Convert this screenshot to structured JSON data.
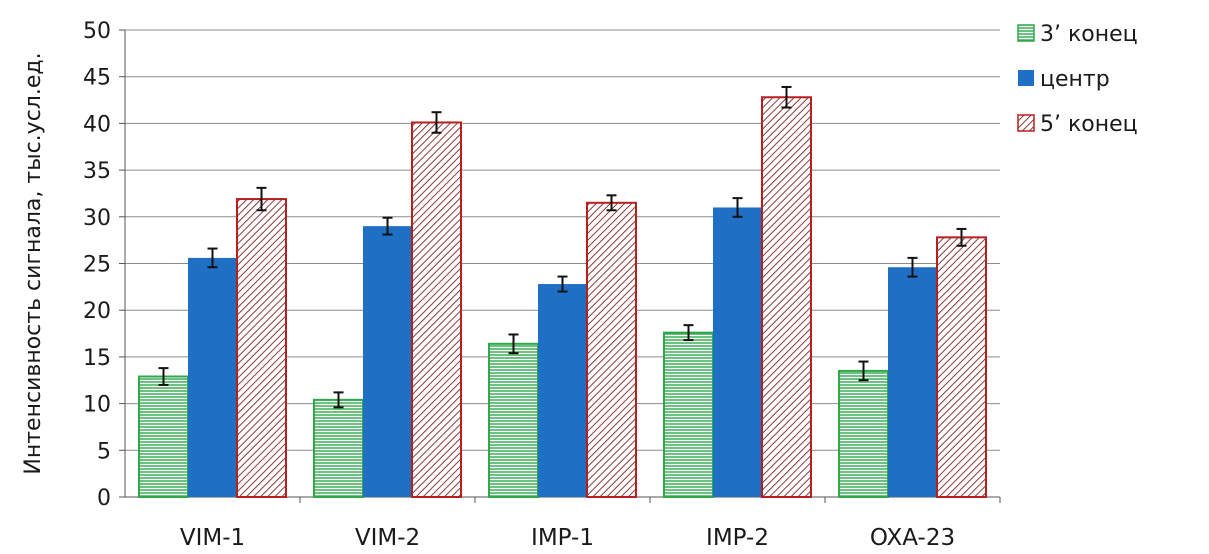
{
  "chart_data": {
    "type": "bar",
    "ylabel": "Интенсивность сигнала, тыс.усл.ед.",
    "ylim": [
      0,
      50
    ],
    "yticks": [
      0,
      5,
      10,
      15,
      20,
      25,
      30,
      35,
      40,
      45,
      50
    ],
    "grid": true,
    "legend_position": "top-right",
    "categories": [
      "VIM-1",
      "VIM-2",
      "IMP-1",
      "IMP-2",
      "OXA-23"
    ],
    "series": [
      {
        "name": "3’ конец",
        "values": [
          12.9,
          10.4,
          16.4,
          17.6,
          13.5
        ],
        "errors": [
          0.9,
          0.8,
          1.0,
          0.8,
          1.0
        ],
        "pattern": "horizontal-lines",
        "color": "#2ea84a"
      },
      {
        "name": "центр",
        "values": [
          25.6,
          29.0,
          22.8,
          31.0,
          24.6
        ],
        "errors": [
          1.0,
          0.9,
          0.8,
          1.0,
          1.0
        ],
        "pattern": "solid",
        "color": "#1f6fc5"
      },
      {
        "name": "5’ конец",
        "values": [
          31.9,
          40.1,
          31.5,
          42.8,
          27.8
        ],
        "errors": [
          1.2,
          1.1,
          0.8,
          1.1,
          0.9
        ],
        "pattern": "diagonal-lines",
        "color": "#b82020"
      }
    ]
  }
}
